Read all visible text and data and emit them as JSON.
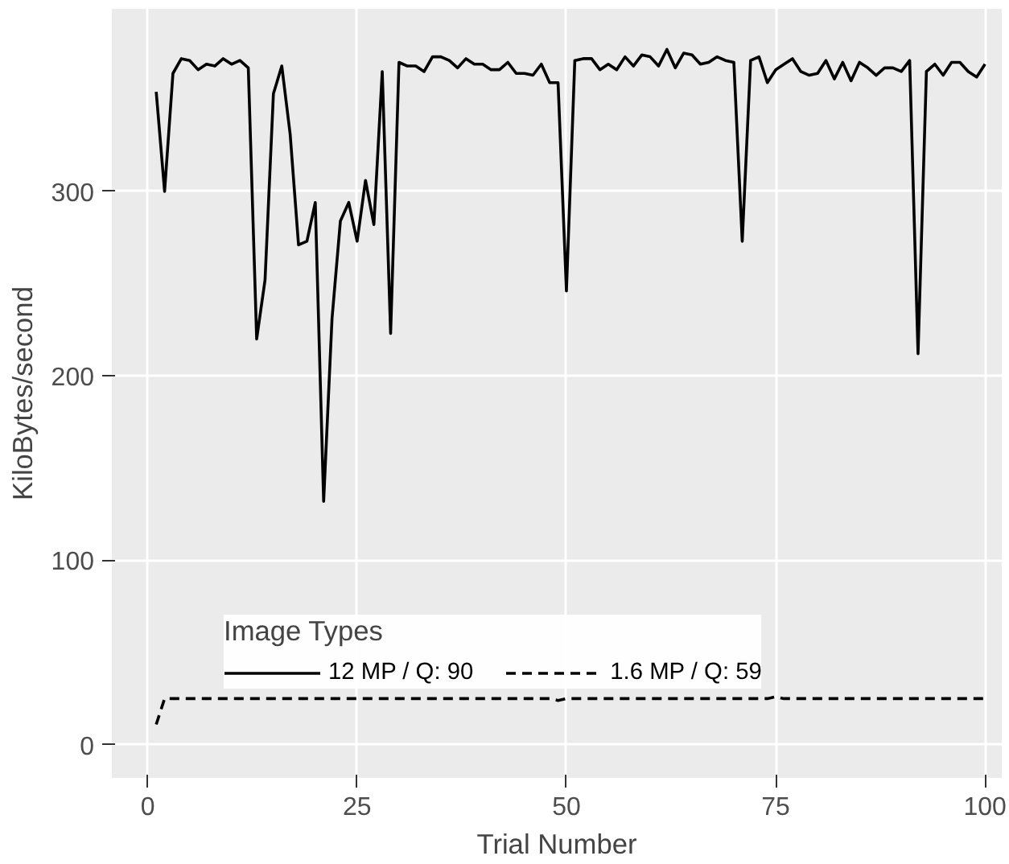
{
  "chart_data": {
    "type": "line",
    "xlabel": "Trial Number",
    "ylabel": "KiloBytes/second",
    "legend_title": "Image Types",
    "x": [
      1,
      2,
      3,
      4,
      5,
      6,
      7,
      8,
      9,
      10,
      11,
      12,
      13,
      14,
      15,
      16,
      17,
      18,
      19,
      20,
      21,
      22,
      23,
      24,
      25,
      26,
      27,
      28,
      29,
      30,
      31,
      32,
      33,
      34,
      35,
      36,
      37,
      38,
      39,
      40,
      41,
      42,
      43,
      44,
      45,
      46,
      47,
      48,
      49,
      50,
      51,
      52,
      53,
      54,
      55,
      56,
      57,
      58,
      59,
      60,
      61,
      62,
      63,
      64,
      65,
      66,
      67,
      68,
      69,
      70,
      71,
      72,
      73,
      74,
      75,
      76,
      77,
      78,
      79,
      80,
      81,
      82,
      83,
      84,
      85,
      86,
      87,
      88,
      89,
      90,
      91,
      92,
      93,
      94,
      95,
      96,
      97,
      98,
      99,
      100
    ],
    "series": [
      {
        "name": "12 MP / Q: 90",
        "color": "#000000",
        "line_style": "solid",
        "values": [
          354,
          300,
          364,
          372,
          371,
          366,
          369,
          368,
          372,
          369,
          371,
          367,
          220,
          252,
          353,
          368,
          331,
          271,
          273,
          294,
          132,
          231,
          284,
          294,
          273,
          306,
          282,
          365,
          223,
          370,
          368,
          368,
          365,
          373,
          373,
          371,
          367,
          372,
          369,
          369,
          366,
          366,
          370,
          364,
          364,
          363,
          369,
          359,
          359,
          246,
          371,
          372,
          372,
          366,
          369,
          366,
          373,
          368,
          374,
          373,
          368,
          377,
          367,
          375,
          374,
          369,
          370,
          373,
          371,
          370,
          273,
          371,
          373,
          359,
          366,
          369,
          372,
          365,
          363,
          364,
          371,
          361,
          370,
          360,
          370,
          367,
          363,
          367,
          367,
          365,
          371,
          212,
          365,
          369,
          363,
          370,
          370,
          365,
          362,
          369
        ]
      },
      {
        "name": "1.6 MP / Q: 59",
        "color": "#000000",
        "line_style": "dashed",
        "values": [
          11,
          25,
          25,
          25,
          25,
          25,
          25,
          25,
          25,
          25,
          25,
          25,
          25,
          25,
          25,
          25,
          25,
          25,
          25,
          25,
          25,
          25,
          25,
          25,
          25,
          25,
          25,
          25,
          25,
          25,
          25,
          25,
          25,
          25,
          25,
          25,
          25,
          25,
          25,
          25,
          25,
          25,
          25,
          25,
          25,
          25,
          25,
          25,
          24,
          25,
          25,
          25,
          25,
          25,
          25,
          25,
          25,
          25,
          25,
          25,
          25,
          25,
          25,
          25,
          25,
          25,
          25,
          25,
          25,
          25,
          25,
          25,
          25,
          25,
          26,
          25,
          25,
          25,
          25,
          25,
          25,
          25,
          25,
          25,
          25,
          25,
          25,
          25,
          25,
          25,
          25,
          25,
          25,
          25,
          25,
          25,
          25,
          25,
          25,
          25
        ]
      }
    ],
    "xlim": [
      -4.3,
      102
    ],
    "ylim": [
      -18,
      399
    ],
    "xticks": [
      0,
      25,
      50,
      75,
      100
    ],
    "yticks": [
      0,
      100,
      200,
      300
    ],
    "grid": true,
    "legend": "bottom",
    "marker": "none"
  }
}
